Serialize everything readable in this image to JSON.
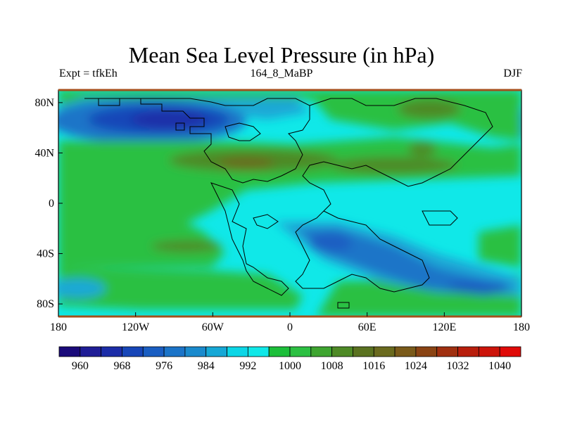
{
  "map": {
    "title": "Mean Sea Level Pressure (in hPa)",
    "left_label": "Expt = tfkEh",
    "center_label": "164_8_MaBP",
    "right_label": "DJF",
    "lon_ticks": [
      "180",
      "120W",
      "60W",
      "0",
      "60E",
      "120E",
      "180"
    ],
    "lat_ticks": [
      "80N",
      "40N",
      "0",
      "40S",
      "80S"
    ],
    "lat_values": [
      80,
      40,
      0,
      -40,
      -80
    ],
    "lon_values": [
      -180,
      -120,
      -60,
      0,
      60,
      120,
      180
    ]
  },
  "colorbar": {
    "colors": [
      "#1a0a7a",
      "#1f1d96",
      "#1c2da8",
      "#1746b8",
      "#1a5ec2",
      "#1b74c8",
      "#1a8acd",
      "#16a8d6",
      "#0cd6e6",
      "#10e8e8",
      "#1cbf3a",
      "#2cc042",
      "#3ea530",
      "#4e8a26",
      "#5a7220",
      "#6a6a1e",
      "#7a5a1a",
      "#8a4414",
      "#a03010",
      "#b81e0c",
      "#cc140a",
      "#e00a08"
    ],
    "labels": [
      "960",
      "968",
      "976",
      "984",
      "992",
      "1000",
      "1008",
      "1016",
      "1024",
      "1032",
      "1040"
    ]
  },
  "legend_palette": {
    "lowest": "#1746b8",
    "low": "#1a74c8",
    "mid_low": "#1aa8d6",
    "neutral": "#10e8e8",
    "mid_high": "#2cc042",
    "high": "#4e8a26",
    "highest": "#6a6a1e"
  }
}
